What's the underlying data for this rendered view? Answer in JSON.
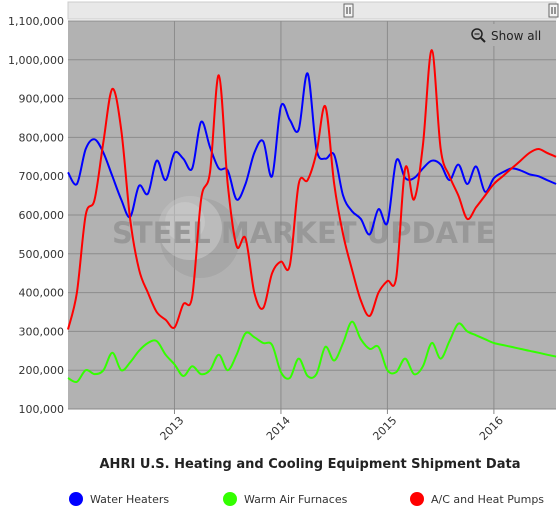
{
  "chart_data": {
    "type": "line",
    "title": "AHRI U.S. Heating and Cooling Equipment Shipment Data",
    "xlabel": "",
    "ylabel": "",
    "ylim": [
      100000,
      1100000
    ],
    "yticks": [
      "100,000",
      "200,000",
      "300,000",
      "400,000",
      "500,000",
      "600,000",
      "700,000",
      "800,000",
      "900,000",
      "1,000,000",
      "1,100,000"
    ],
    "x_start": "2012-01",
    "xticks": [
      {
        "label": "2013",
        "month_index": 12
      },
      {
        "label": "2014",
        "month_index": 24
      },
      {
        "label": "2015",
        "month_index": 36
      },
      {
        "label": "2016",
        "month_index": 48
      }
    ],
    "grid": true,
    "legend_position": "bottom",
    "x": [
      "2012-01",
      "2012-02",
      "2012-03",
      "2012-04",
      "2012-05",
      "2012-06",
      "2012-07",
      "2012-08",
      "2012-09",
      "2012-10",
      "2012-11",
      "2012-12",
      "2013-01",
      "2013-02",
      "2013-03",
      "2013-04",
      "2013-05",
      "2013-06",
      "2013-07",
      "2013-08",
      "2013-09",
      "2013-10",
      "2013-11",
      "2013-12",
      "2014-01",
      "2014-02",
      "2014-03",
      "2014-04",
      "2014-05",
      "2014-06",
      "2014-07",
      "2014-08",
      "2014-09",
      "2014-10",
      "2014-11",
      "2014-12",
      "2015-01",
      "2015-02",
      "2015-03",
      "2015-04",
      "2015-05",
      "2015-06",
      "2015-07",
      "2015-08",
      "2015-09",
      "2015-10",
      "2015-11",
      "2015-12",
      "2016-01",
      "2016-02",
      "2016-03",
      "2016-04",
      "2016-05",
      "2016-06",
      "2016-07",
      "2016-08"
    ],
    "series": [
      {
        "name": "Water Heaters",
        "color": "#0000ff",
        "values": [
          710000,
          680000,
          770000,
          795000,
          760000,
          700000,
          640000,
          595000,
          675000,
          655000,
          740000,
          690000,
          760000,
          745000,
          720000,
          840000,
          775000,
          720000,
          715000,
          640000,
          680000,
          760000,
          790000,
          700000,
          880000,
          845000,
          820000,
          965000,
          770000,
          745000,
          755000,
          650000,
          610000,
          590000,
          550000,
          615000,
          580000,
          740000,
          695000,
          695000,
          720000,
          740000,
          730000,
          690000,
          730000,
          680000,
          725000,
          660000,
          695000,
          710000,
          720000,
          715000,
          705000,
          700000,
          690000,
          680000
        ]
      },
      {
        "name": "Warm Air Furnaces",
        "color": "#33ff00",
        "values": [
          180000,
          170000,
          200000,
          190000,
          200000,
          245000,
          200000,
          220000,
          250000,
          270000,
          275000,
          240000,
          215000,
          185000,
          210000,
          190000,
          200000,
          240000,
          200000,
          240000,
          295000,
          285000,
          270000,
          265000,
          195000,
          180000,
          230000,
          185000,
          190000,
          260000,
          225000,
          270000,
          325000,
          280000,
          255000,
          260000,
          200000,
          195000,
          230000,
          190000,
          210000,
          270000,
          230000,
          275000,
          320000,
          300000,
          290000,
          280000,
          270000,
          265000,
          260000,
          255000,
          250000,
          245000,
          240000,
          235000
        ]
      },
      {
        "name": "A/C and Heat Pumps",
        "color": "#ff0000",
        "values": [
          305000,
          400000,
          600000,
          640000,
          790000,
          925000,
          820000,
          590000,
          460000,
          400000,
          350000,
          330000,
          310000,
          370000,
          390000,
          640000,
          710000,
          960000,
          680000,
          520000,
          540000,
          400000,
          360000,
          450000,
          480000,
          470000,
          680000,
          690000,
          760000,
          880000,
          680000,
          550000,
          460000,
          380000,
          340000,
          400000,
          430000,
          440000,
          720000,
          640000,
          780000,
          1025000,
          770000,
          700000,
          650000,
          590000,
          620000,
          650000,
          680000,
          700000,
          720000,
          740000,
          760000,
          770000,
          760000,
          750000
        ]
      }
    ]
  },
  "toolbar": {
    "show_all_label": "Show all",
    "zoom_icon": "zoom-magnifier-icon"
  },
  "scrollbar": {
    "handle_icon": "drag-handle-icon"
  },
  "watermark": {
    "text": "STEEL MARKET UPDATE",
    "logo": "sphere-logo"
  }
}
